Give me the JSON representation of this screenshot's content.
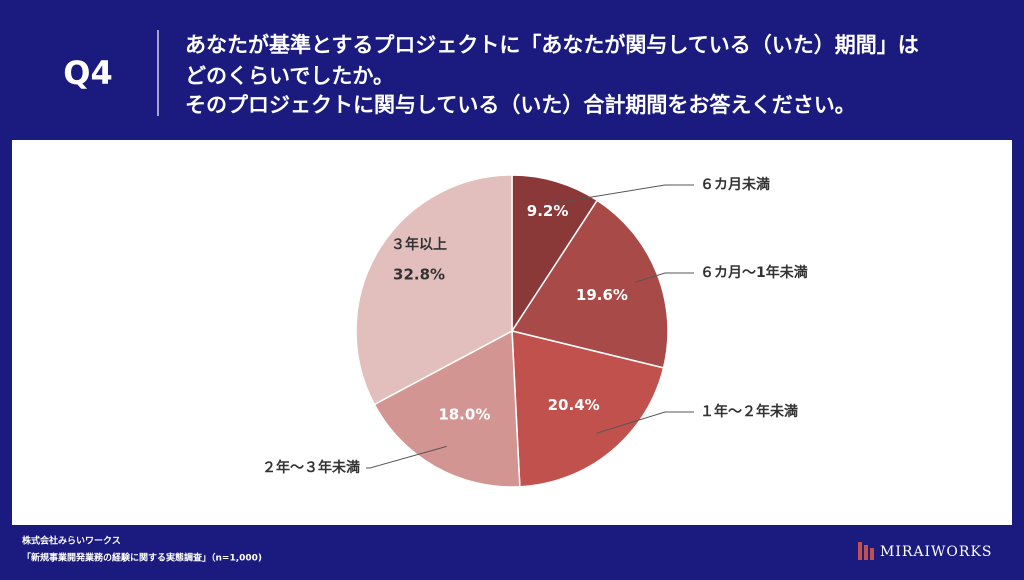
{
  "header": {
    "q": "Q4",
    "lines": [
      "あなたが基準とするプロジェクトに「あなたが関与している（いた）期間」は",
      "どのくらいでしたか。",
      "そのプロジェクトに関与している（いた）合計期間をお答えください。"
    ]
  },
  "chart_data": {
    "type": "pie",
    "categories": [
      "６カ月未満",
      "６カ月～1年未満",
      "１年～２年未満",
      "２年～３年未満",
      "３年以上"
    ],
    "values": [
      9.2,
      19.6,
      20.4,
      18.0,
      32.8
    ],
    "value_labels": [
      "9.2%",
      "19.6%",
      "20.4%",
      "18.0%",
      "32.8%"
    ],
    "colors": [
      "#8a3838",
      "#a84a47",
      "#c0514d",
      "#d39592",
      "#e2bebd"
    ]
  },
  "footer": {
    "company": "株式会社みらいワークス",
    "survey": "「新規事業開発業務の経験に関する実態調査」（n=1,000)",
    "brand": "MIRAIWORKS"
  }
}
